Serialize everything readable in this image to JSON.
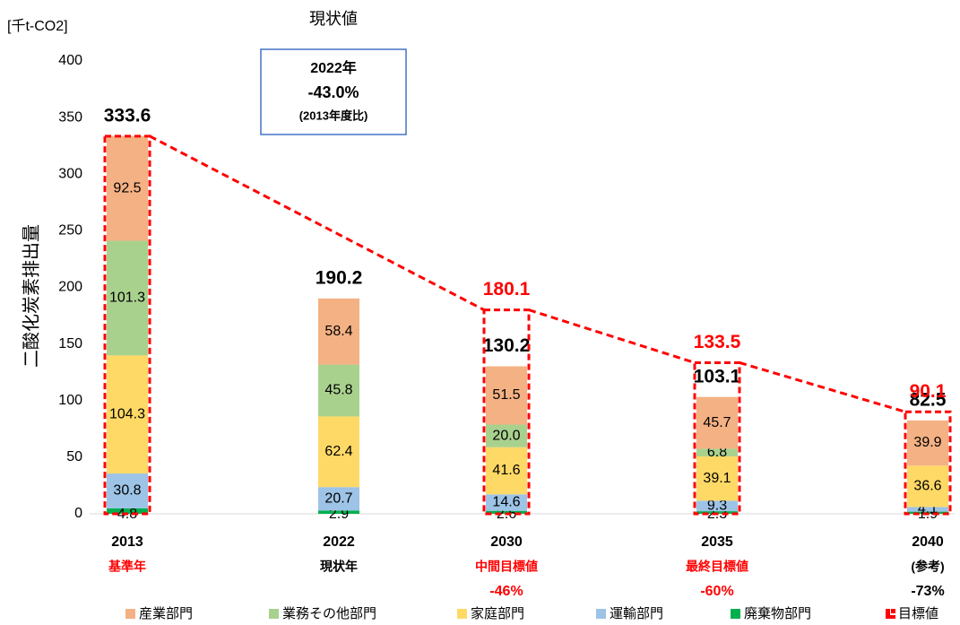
{
  "chart_data": {
    "type": "stacked-bar",
    "title": "現状値",
    "y_unit": "[千t-CO2]",
    "y_label": "二酸化炭素排出量",
    "categories": [
      "2013",
      "2022",
      "2030",
      "2035",
      "2040"
    ],
    "category_notes": [
      "基準年",
      "現状年",
      "中間目標値",
      "最終目標値",
      "(参考)"
    ],
    "reductions": [
      null,
      null,
      "-46%",
      "-60%",
      "-73%"
    ],
    "note_colors": [
      "#ff0000",
      "#000000",
      "#ff0000",
      "#ff0000",
      "#000000"
    ],
    "series": [
      {
        "name": "廃棄物部門",
        "color": "#00b050",
        "values": [
          4.8,
          2.9,
          2.6,
          2.3,
          1.9
        ]
      },
      {
        "name": "運輸部門",
        "color": "#9dc3e6",
        "values": [
          30.8,
          20.7,
          14.6,
          9.3,
          4.1
        ]
      },
      {
        "name": "家庭部門",
        "color": "#ffd966",
        "values": [
          104.3,
          62.4,
          41.6,
          39.1,
          36.6
        ]
      },
      {
        "name": "業務その他部門",
        "color": "#a9d18e",
        "values": [
          101.3,
          45.8,
          20,
          6.8,
          null
        ],
        "value_labels": [
          null,
          null,
          "20.0",
          null,
          null
        ]
      },
      {
        "name": "産業部門",
        "color": "#f4b183",
        "values": [
          92.5,
          58.4,
          51.5,
          45.7,
          39.9
        ]
      }
    ],
    "totals": [
      333.6,
      190.2,
      130.2,
      103.1,
      82.5
    ],
    "targets": {
      "name": "目標値",
      "color": "#ff0000",
      "values": [
        333.6,
        null,
        180.1,
        133.5,
        90.1
      ]
    },
    "annotation": [
      "2022年",
      "-43.0%",
      "(2013年度比)"
    ],
    "ylim": [
      0,
      400
    ],
    "yticks": [
      0,
      50,
      100,
      150,
      200,
      250,
      300,
      350,
      400
    ],
    "grid": false
  }
}
